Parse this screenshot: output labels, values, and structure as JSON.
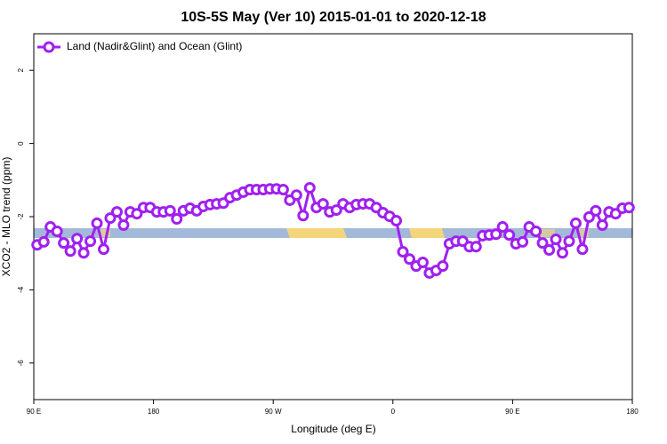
{
  "chart_data": {
    "type": "line",
    "title": "10S-5S May (Ver 10)   2015-01-01 to 2020-12-18",
    "x_label": "Longitude (deg E)",
    "y_label": "XCO2 - MLO trend (ppm)",
    "xlim": [
      90,
      540
    ],
    "xticks": [
      {
        "value": 90,
        "label": "90 E"
      },
      180,
      {
        "value": 270,
        "label": "90 W"
      },
      {
        "value": 360,
        "label": "0"
      },
      {
        "value": 450,
        "label": "90 E"
      },
      {
        "value": 540,
        "label": "180"
      }
    ],
    "ylim": [
      -7,
      3
    ],
    "yticks": [
      -6,
      -4,
      -2,
      0,
      2
    ],
    "legend": "topleft",
    "x": [
      92.5,
      97.5,
      102.5,
      107.5,
      112.5,
      117.5,
      122.5,
      127.5,
      132.5,
      137.5,
      142.5,
      147.5,
      152.5,
      157.5,
      162.5,
      167.5,
      172.5,
      177.5,
      182.5,
      187.5,
      192.5,
      197.5,
      202.5,
      207.5,
      212.5,
      217.5,
      222.5,
      227.5,
      232.5,
      237.5,
      242.5,
      247.5,
      252.5,
      257.5,
      262.5,
      267.5,
      272.5,
      277.5,
      282.5,
      287.5,
      292.5,
      297.5,
      302.5,
      307.5,
      312.5,
      317.5,
      322.5,
      327.5,
      332.5,
      337.5,
      342.5,
      347.5,
      352.5,
      357.5,
      362.5,
      367.5,
      372.5,
      377.5,
      382.5,
      387.5,
      392.5,
      397.5,
      402.5,
      407.5,
      412.5,
      417.5,
      422.5,
      427.5,
      432.5,
      437.5,
      442.5,
      447.5,
      452.5,
      457.5,
      462.5,
      467.5,
      472.5,
      477.5,
      482.5,
      487.5,
      492.5,
      497.5,
      502.5,
      507.5,
      512.5,
      517.5,
      522.5,
      527.5,
      532.5,
      537.5
    ],
    "series": [
      {
        "name": "Land (Nadir&Glint) and Ocean (Glint)",
        "color": "#a020f0",
        "values": [
          -2.77,
          -2.69,
          -2.28,
          -2.4,
          -2.72,
          -2.94,
          -2.6,
          -2.99,
          -2.67,
          -2.18,
          -2.89,
          -2.04,
          -1.87,
          -2.23,
          -1.87,
          -1.92,
          -1.75,
          -1.75,
          -1.87,
          -1.87,
          -1.84,
          -2.06,
          -1.84,
          -1.77,
          -1.84,
          -1.72,
          -1.67,
          -1.65,
          -1.63,
          -1.48,
          -1.41,
          -1.33,
          -1.26,
          -1.26,
          -1.26,
          -1.24,
          -1.24,
          -1.26,
          -1.55,
          -1.41,
          -1.97,
          -1.21,
          -1.75,
          -1.65,
          -1.87,
          -1.82,
          -1.65,
          -1.75,
          -1.67,
          -1.65,
          -1.65,
          -1.75,
          -1.89,
          -1.99,
          -2.11,
          -2.96,
          -3.16,
          -3.35,
          -3.25,
          -3.54,
          -3.47,
          -3.35,
          -2.74,
          -2.67,
          -2.67,
          -2.82,
          -2.82,
          -2.52,
          -2.5,
          -2.48,
          -2.28,
          -2.5,
          -2.74,
          -2.69,
          -2.28,
          -2.4,
          -2.72,
          -2.91,
          -2.62,
          -2.99,
          -2.67,
          -2.18,
          -2.89,
          -2.01,
          -1.84,
          -2.23,
          -1.87,
          -1.92,
          -1.77,
          -1.75
        ]
      }
    ]
  }
}
